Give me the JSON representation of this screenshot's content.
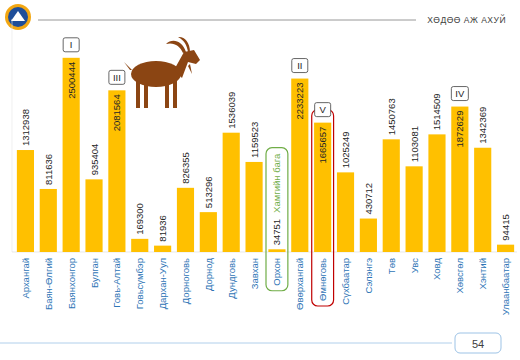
{
  "chart_data": {
    "type": "bar",
    "categories": [
      "Архангай",
      "Баян-Өлгий",
      "Баянхонгор",
      "Булган",
      "Говь-Алтай",
      "Говьсүмбэр",
      "Дархан-Уул",
      "Дорноговь",
      "Дорнод",
      "Дундговь",
      "Завхан",
      "Орхон",
      "Өвөрхангай",
      "Өмнөговь",
      "Сүхбаатар",
      "Сэлэнгэ",
      "Төв",
      "Увс",
      "Ховд",
      "Хөвсгөл",
      "Хэнтий",
      "Улаанбаатар"
    ],
    "values": [
      1312938,
      811636,
      2500444,
      935404,
      2081564,
      169300,
      81936,
      826355,
      513296,
      1536039,
      1159523,
      34751,
      2233223,
      1665657,
      1025249,
      430712,
      1450763,
      1103081,
      1514509,
      1872629,
      1342369,
      94415
    ],
    "color": "#ffc000",
    "ylim": [
      0,
      3000000
    ],
    "data_labels": true,
    "tick_labels": "x",
    "annotations": [
      {
        "text": "I",
        "category": "Баянхонгор"
      },
      {
        "text": "II",
        "category": "Өвөрхангай"
      },
      {
        "text": "III",
        "category": "Говь-Алтай"
      },
      {
        "text": "IV",
        "category": "Хөвсгөл"
      },
      {
        "text": "V",
        "category": "Өмнөговь",
        "color": "#c00000"
      },
      {
        "text": "Хамгийн бага",
        "category": "Орхон",
        "color": "#70ad47"
      }
    ]
  },
  "header": {
    "title": "ХӨДӨӨ АЖ АХУЙ",
    "page_number": 54
  }
}
